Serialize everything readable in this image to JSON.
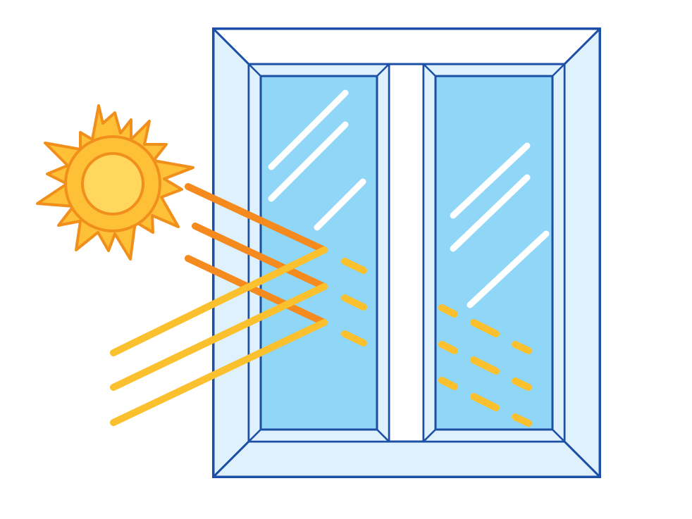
{
  "illustration": {
    "icons": [
      "sun-icon",
      "window-icon"
    ],
    "colors": {
      "background": "#ffffff",
      "frame_outline": "#1c4fa6",
      "frame_fill": "#ffffff",
      "frame_bevel": "#dff1fc",
      "glass": "#8fd6f7",
      "glass_highlight": "#ffffff",
      "sun_body": "#ffd75c",
      "sun_rays": "#fdc037",
      "sun_outline": "#f18f1c",
      "reflected_ray": "#fbc02d",
      "incoming_ray": "#f58a1f",
      "transmitted_dash": "#fbc02d"
    }
  }
}
